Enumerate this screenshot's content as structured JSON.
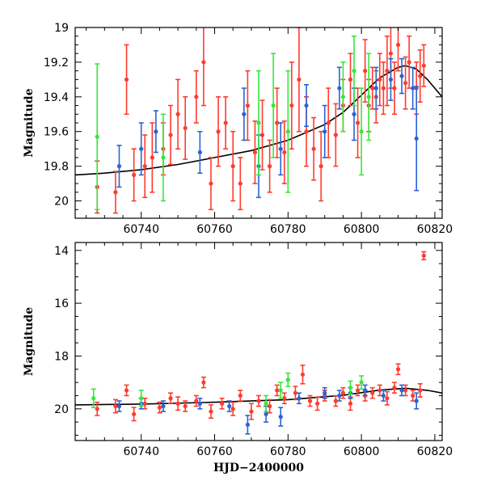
{
  "chart_data": [
    {
      "type": "scatter",
      "title": "",
      "xlabel": "",
      "ylabel": "Magnitude",
      "xlim": [
        60722,
        60822
      ],
      "ylim": [
        20.1,
        19.0
      ],
      "y_inverted": true,
      "xticks": [
        60740,
        60760,
        60780,
        60800,
        60820
      ],
      "yticks": [
        19,
        19.2,
        19.4,
        19.6,
        19.8,
        20
      ],
      "ytick_labels": [
        "19",
        "19.2",
        "19.4",
        "19.6",
        "19.8",
        "20"
      ],
      "grid": false,
      "legend": "none",
      "model_curve": {
        "color": "#000000",
        "x": [
          60722,
          60730,
          60740,
          60750,
          60760,
          60770,
          60780,
          60790,
          60795,
          60800,
          60805,
          60810,
          60812,
          60815,
          60818,
          60822
        ],
        "y": [
          19.85,
          19.84,
          19.82,
          19.79,
          19.75,
          19.71,
          19.65,
          19.56,
          19.49,
          19.39,
          19.29,
          19.23,
          19.22,
          19.24,
          19.3,
          19.4
        ]
      },
      "series": [
        {
          "color": "#ff3b2e",
          "points": [
            [
              60728,
              19.92,
              0.15
            ],
            [
              60733,
              19.95,
              0.12
            ],
            [
              60736,
              19.3,
              0.2
            ],
            [
              60738,
              19.85,
              0.15
            ],
            [
              60741,
              19.8,
              0.18
            ],
            [
              60743,
              19.75,
              0.2
            ],
            [
              60746,
              19.7,
              0.15
            ],
            [
              60748,
              19.62,
              0.17
            ],
            [
              60750,
              19.5,
              0.2
            ],
            [
              60752,
              19.58,
              0.18
            ],
            [
              60755,
              19.4,
              0.15
            ],
            [
              60757,
              19.2,
              0.25
            ],
            [
              60759,
              19.9,
              0.15
            ],
            [
              60761,
              19.6,
              0.2
            ],
            [
              60763,
              19.55,
              0.15
            ],
            [
              60765,
              19.8,
              0.2
            ],
            [
              60767,
              19.9,
              0.15
            ],
            [
              60769,
              19.45,
              0.2
            ],
            [
              60771,
              19.72,
              0.18
            ],
            [
              60773,
              19.62,
              0.2
            ],
            [
              60775,
              19.8,
              0.15
            ],
            [
              60777,
              19.55,
              0.2
            ],
            [
              60779,
              19.72,
              0.18
            ],
            [
              60781,
              19.45,
              0.25
            ],
            [
              60783,
              19.3,
              0.3
            ],
            [
              60785,
              19.6,
              0.2
            ],
            [
              60787,
              19.7,
              0.18
            ],
            [
              60789,
              19.8,
              0.2
            ],
            [
              60791,
              19.55,
              0.2
            ],
            [
              60793,
              19.62,
              0.18
            ],
            [
              60795,
              19.45,
              0.15
            ],
            [
              60797,
              19.3,
              0.15
            ],
            [
              60799,
              19.55,
              0.2
            ],
            [
              60801,
              19.25,
              0.18
            ],
            [
              60802,
              19.45,
              0.15
            ],
            [
              60803,
              19.35,
              0.12
            ],
            [
              60804,
              19.4,
              0.15
            ],
            [
              60805,
              19.3,
              0.15
            ],
            [
              60806,
              19.35,
              0.15
            ],
            [
              60807,
              19.25,
              0.2
            ],
            [
              60808,
              19.15,
              0.2
            ],
            [
              60809,
              19.35,
              0.15
            ],
            [
              60810,
              19.1,
              0.15
            ],
            [
              60812,
              19.32,
              0.15
            ],
            [
              60813,
              19.2,
              0.15
            ],
            [
              60815,
              19.35,
              0.15
            ],
            [
              60816,
              19.28,
              0.15
            ],
            [
              60817,
              19.22,
              0.12
            ]
          ]
        },
        {
          "color": "#2a63d6",
          "points": [
            [
              60734,
              19.8,
              0.12
            ],
            [
              60740,
              19.7,
              0.15
            ],
            [
              60744,
              19.6,
              0.12
            ],
            [
              60756,
              19.72,
              0.12
            ],
            [
              60768,
              19.5,
              0.15
            ],
            [
              60772,
              19.8,
              0.18
            ],
            [
              60778,
              19.7,
              0.15
            ],
            [
              60785,
              19.45,
              0.12
            ],
            [
              60790,
              19.6,
              0.15
            ],
            [
              60794,
              19.35,
              0.12
            ],
            [
              60798,
              19.5,
              0.15
            ],
            [
              60804,
              19.35,
              0.12
            ],
            [
              60808,
              19.3,
              0.12
            ],
            [
              60811,
              19.28,
              0.1
            ],
            [
              60814,
              19.35,
              0.12
            ],
            [
              60815,
              19.64,
              0.3
            ]
          ]
        },
        {
          "color": "#36e83a",
          "points": [
            [
              60728,
              19.63,
              0.42
            ],
            [
              60746,
              19.75,
              0.25
            ],
            [
              60772,
              19.55,
              0.3
            ],
            [
              60776,
              19.45,
              0.3
            ],
            [
              60780,
              19.6,
              0.35
            ],
            [
              60795,
              19.4,
              0.2
            ],
            [
              60798,
              19.25,
              0.2
            ],
            [
              60800,
              19.6,
              0.25
            ],
            [
              60802,
              19.4,
              0.25
            ]
          ]
        }
      ]
    },
    {
      "type": "scatter",
      "title": "",
      "xlabel": "HJD−2400000",
      "ylabel": "Magnitude",
      "xlim": [
        60722,
        60822
      ],
      "ylim": [
        21.2,
        13.7
      ],
      "y_inverted": true,
      "xticks": [
        60740,
        60760,
        60780,
        60800,
        60820
      ],
      "yticks": [
        14,
        16,
        18,
        20
      ],
      "ytick_labels": [
        "14",
        "16",
        "18",
        "20"
      ],
      "grid": false,
      "legend": "none",
      "model_curve": {
        "color": "#000000",
        "x": [
          60722,
          60740,
          60760,
          60780,
          60795,
          60805,
          60812,
          60818,
          60822
        ],
        "y": [
          19.85,
          19.82,
          19.75,
          19.65,
          19.49,
          19.29,
          19.22,
          19.3,
          19.4
        ]
      },
      "series": [
        {
          "color": "#ff3b2e",
          "points": [
            [
              60728,
              20.0,
              0.25
            ],
            [
              60733,
              19.9,
              0.25
            ],
            [
              60736,
              19.3,
              0.2
            ],
            [
              60738,
              20.2,
              0.25
            ],
            [
              60741,
              19.8,
              0.2
            ],
            [
              60745,
              19.95,
              0.2
            ],
            [
              60748,
              19.6,
              0.2
            ],
            [
              60750,
              19.8,
              0.25
            ],
            [
              60752,
              19.9,
              0.2
            ],
            [
              60755,
              19.7,
              0.2
            ],
            [
              60757,
              19.0,
              0.2
            ],
            [
              60759,
              20.1,
              0.25
            ],
            [
              60762,
              19.8,
              0.2
            ],
            [
              60765,
              20.0,
              0.25
            ],
            [
              60767,
              19.5,
              0.2
            ],
            [
              60770,
              20.1,
              0.3
            ],
            [
              60772,
              19.7,
              0.2
            ],
            [
              60775,
              19.9,
              0.25
            ],
            [
              60777,
              19.3,
              0.2
            ],
            [
              60779,
              19.6,
              0.2
            ],
            [
              60782,
              19.4,
              0.25
            ],
            [
              60784,
              18.7,
              0.35
            ],
            [
              60786,
              19.7,
              0.2
            ],
            [
              60788,
              19.8,
              0.25
            ],
            [
              60790,
              19.5,
              0.2
            ],
            [
              60793,
              19.7,
              0.2
            ],
            [
              60795,
              19.4,
              0.2
            ],
            [
              60797,
              19.8,
              0.25
            ],
            [
              60799,
              19.3,
              0.2
            ],
            [
              60801,
              19.5,
              0.2
            ],
            [
              60803,
              19.4,
              0.2
            ],
            [
              60805,
              19.3,
              0.2
            ],
            [
              60807,
              19.6,
              0.25
            ],
            [
              60809,
              19.2,
              0.2
            ],
            [
              60810,
              18.5,
              0.2
            ],
            [
              60812,
              19.3,
              0.2
            ],
            [
              60814,
              19.5,
              0.2
            ],
            [
              60816,
              19.3,
              0.25
            ],
            [
              60817,
              14.2,
              0.15
            ]
          ]
        },
        {
          "color": "#2a63d6",
          "points": [
            [
              60734,
              19.9,
              0.2
            ],
            [
              60740,
              19.8,
              0.2
            ],
            [
              60746,
              19.9,
              0.2
            ],
            [
              60756,
              19.8,
              0.2
            ],
            [
              60764,
              19.9,
              0.2
            ],
            [
              60769,
              20.6,
              0.35
            ],
            [
              60774,
              20.2,
              0.3
            ],
            [
              60778,
              20.3,
              0.35
            ],
            [
              60783,
              19.6,
              0.2
            ],
            [
              60790,
              19.4,
              0.2
            ],
            [
              60794,
              19.5,
              0.2
            ],
            [
              60797,
              19.4,
              0.2
            ],
            [
              60801,
              19.3,
              0.2
            ],
            [
              60806,
              19.5,
              0.2
            ],
            [
              60811,
              19.3,
              0.2
            ],
            [
              60815,
              19.7,
              0.3
            ]
          ]
        },
        {
          "color": "#36e83a",
          "points": [
            [
              60727,
              19.6,
              0.35
            ],
            [
              60740,
              19.6,
              0.3
            ],
            [
              60774,
              19.8,
              0.3
            ],
            [
              60778,
              19.3,
              0.3
            ],
            [
              60780,
              18.9,
              0.25
            ],
            [
              60797,
              19.2,
              0.25
            ],
            [
              60800,
              19.0,
              0.25
            ]
          ]
        }
      ]
    }
  ]
}
